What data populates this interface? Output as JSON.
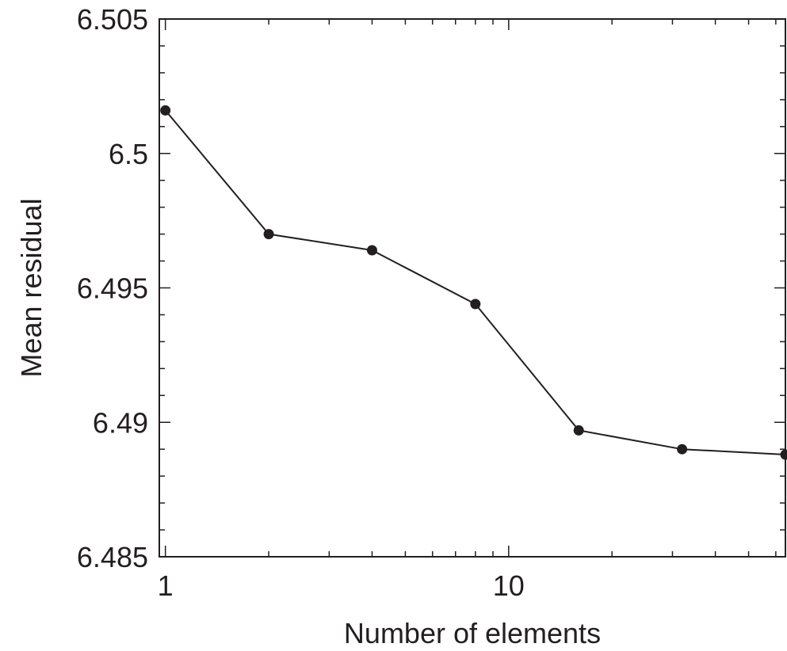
{
  "chart_data": {
    "type": "line",
    "xlabel": "Number of elements",
    "ylabel": "Mean residual",
    "xscale": "log",
    "xlim": [
      0.96,
      64
    ],
    "ylim": [
      6.485,
      6.505
    ],
    "grid": false,
    "legend": "none",
    "x_ticks": [
      {
        "value": 1,
        "label": "1"
      },
      {
        "value": 10,
        "label": "10"
      }
    ],
    "y_ticks": [
      {
        "value": 6.505,
        "label": "6.505"
      },
      {
        "value": 6.5,
        "label": "6.5"
      },
      {
        "value": 6.495,
        "label": "6.495"
      },
      {
        "value": 6.49,
        "label": "6.49"
      },
      {
        "value": 6.485,
        "label": "6.485"
      }
    ],
    "series": [
      {
        "x": [
          1,
          2,
          4,
          8,
          16,
          32,
          64
        ],
        "y": [
          6.5016,
          6.497,
          6.4964,
          6.4944,
          6.4897,
          6.489,
          6.4888
        ]
      }
    ],
    "colors": {
      "ink": "#231f20",
      "background": "#ffffff"
    }
  }
}
